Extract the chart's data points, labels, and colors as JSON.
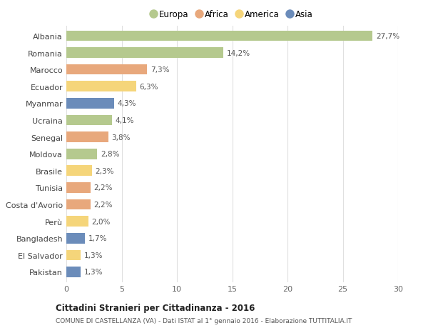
{
  "countries": [
    "Albania",
    "Romania",
    "Marocco",
    "Ecuador",
    "Myanmar",
    "Ucraina",
    "Senegal",
    "Moldova",
    "Brasile",
    "Tunisia",
    "Costa d'Avorio",
    "Perù",
    "Bangladesh",
    "El Salvador",
    "Pakistan"
  ],
  "values": [
    27.7,
    14.2,
    7.3,
    6.3,
    4.3,
    4.1,
    3.8,
    2.8,
    2.3,
    2.2,
    2.2,
    2.0,
    1.7,
    1.3,
    1.3
  ],
  "labels": [
    "27,7%",
    "14,2%",
    "7,3%",
    "6,3%",
    "4,3%",
    "4,1%",
    "3,8%",
    "2,8%",
    "2,3%",
    "2,2%",
    "2,2%",
    "2,0%",
    "1,7%",
    "1,3%",
    "1,3%"
  ],
  "continents": [
    "Europa",
    "Europa",
    "Africa",
    "America",
    "Asia",
    "Europa",
    "Africa",
    "Europa",
    "America",
    "Africa",
    "Africa",
    "America",
    "Asia",
    "America",
    "Asia"
  ],
  "colors": {
    "Europa": "#b5c98e",
    "Africa": "#e8a87c",
    "America": "#f5d57a",
    "Asia": "#6b8cba"
  },
  "legend_order": [
    "Europa",
    "Africa",
    "America",
    "Asia"
  ],
  "title": "Cittadini Stranieri per Cittadinanza - 2016",
  "subtitle": "COMUNE DI CASTELLANZA (VA) - Dati ISTAT al 1° gennaio 2016 - Elaborazione TUTTITALIA.IT",
  "xlim": [
    0,
    30
  ],
  "xticks": [
    0,
    5,
    10,
    15,
    20,
    25,
    30
  ],
  "background_color": "#ffffff",
  "grid_color": "#e0e0e0",
  "bar_height": 0.62
}
